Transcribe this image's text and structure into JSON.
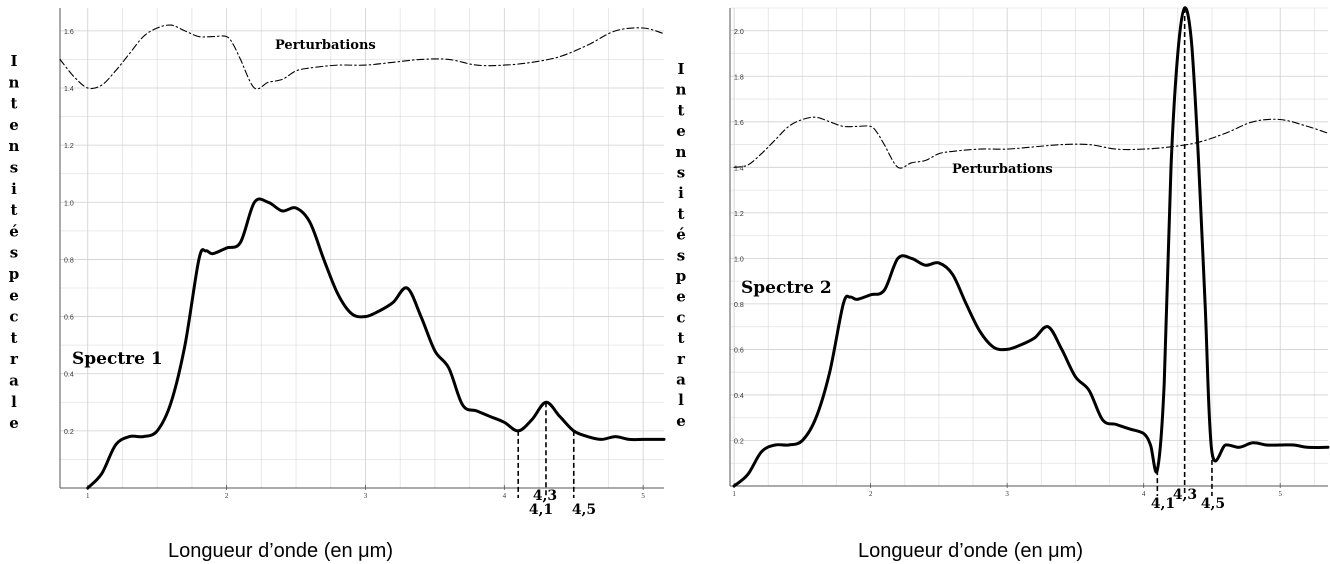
{
  "chart_data": [
    {
      "type": "line",
      "annotation": "Spectre 1",
      "noise_label": "Perturbations",
      "ylabel": "Intensité spectrale",
      "xlabel": "Longueur d’onde (en μm)",
      "xlim": [
        0.8,
        5.15
      ],
      "ylim": [
        0,
        1.68
      ],
      "y_ticks": [
        "0.2",
        "0.4",
        "0.6",
        "0.8",
        "1.0",
        "1.2",
        "1.4",
        "1.6"
      ],
      "x_ticks": [
        "1",
        "2",
        "3",
        "4",
        "5"
      ],
      "markers": [
        "4,1",
        "4,3",
        "4,5"
      ],
      "grid": true,
      "series": [
        {
          "style": "solid",
          "x": [
            1.0,
            1.1,
            1.2,
            1.3,
            1.4,
            1.5,
            1.6,
            1.7,
            1.8,
            1.85,
            1.9,
            2.0,
            2.1,
            2.2,
            2.3,
            2.4,
            2.5,
            2.6,
            2.7,
            2.8,
            2.9,
            3.0,
            3.1,
            3.2,
            3.3,
            3.4,
            3.5,
            3.6,
            3.7,
            3.8,
            3.9,
            4.0,
            4.1,
            4.2,
            4.3,
            4.4,
            4.5,
            4.6,
            4.7,
            4.8,
            4.9,
            5.0,
            5.1,
            5.15
          ],
          "values": [
            0.0,
            0.05,
            0.15,
            0.18,
            0.18,
            0.2,
            0.3,
            0.5,
            0.8,
            0.83,
            0.82,
            0.84,
            0.86,
            1.0,
            1.0,
            0.97,
            0.98,
            0.93,
            0.8,
            0.68,
            0.61,
            0.6,
            0.62,
            0.65,
            0.7,
            0.6,
            0.48,
            0.42,
            0.29,
            0.27,
            0.25,
            0.23,
            0.2,
            0.24,
            0.3,
            0.25,
            0.2,
            0.18,
            0.17,
            0.18,
            0.17,
            0.17,
            0.17,
            0.17
          ]
        },
        {
          "style": "dash-dot",
          "x": [
            0.8,
            0.9,
            1.0,
            1.1,
            1.2,
            1.3,
            1.4,
            1.5,
            1.6,
            1.7,
            1.8,
            1.9,
            2.0,
            2.05,
            2.1,
            2.2,
            2.3,
            2.4,
            2.5,
            2.6,
            2.8,
            3.0,
            3.2,
            3.4,
            3.6,
            3.8,
            4.0,
            4.2,
            4.4,
            4.6,
            4.8,
            5.0,
            5.15
          ],
          "values": [
            1.5,
            1.44,
            1.4,
            1.41,
            1.46,
            1.52,
            1.58,
            1.61,
            1.62,
            1.6,
            1.58,
            1.58,
            1.58,
            1.55,
            1.5,
            1.4,
            1.42,
            1.43,
            1.46,
            1.47,
            1.48,
            1.48,
            1.49,
            1.5,
            1.5,
            1.48,
            1.48,
            1.49,
            1.51,
            1.55,
            1.6,
            1.61,
            1.59
          ]
        }
      ]
    },
    {
      "type": "line",
      "annotation": "Spectre 2",
      "noise_label": "Perturbations",
      "ylabel": "Intensité spectrale",
      "xlabel": "Longueur d’onde (en μm)",
      "xlim": [
        0.97,
        5.35
      ],
      "ylim": [
        0,
        2.1
      ],
      "y_ticks": [
        "0.2",
        "0.4",
        "0.6",
        "0.8",
        "1.0",
        "1.2",
        "1.4",
        "1.6",
        "1.8",
        "2.0"
      ],
      "x_ticks": [
        "1",
        "2",
        "3",
        "4",
        "5"
      ],
      "markers": [
        "4,1",
        "4,3",
        "4,5"
      ],
      "grid": true,
      "series": [
        {
          "style": "solid",
          "x": [
            1.0,
            1.1,
            1.2,
            1.3,
            1.4,
            1.5,
            1.6,
            1.7,
            1.8,
            1.85,
            1.9,
            2.0,
            2.1,
            2.2,
            2.3,
            2.4,
            2.5,
            2.6,
            2.7,
            2.8,
            2.9,
            3.0,
            3.1,
            3.2,
            3.3,
            3.4,
            3.5,
            3.6,
            3.7,
            3.8,
            3.9,
            4.0,
            4.05,
            4.1,
            4.15,
            4.2,
            4.25,
            4.3,
            4.35,
            4.4,
            4.45,
            4.5,
            4.6,
            4.7,
            4.8,
            4.9,
            5.0,
            5.1,
            5.2,
            5.35
          ],
          "values": [
            0.0,
            0.05,
            0.15,
            0.18,
            0.18,
            0.2,
            0.3,
            0.5,
            0.8,
            0.83,
            0.82,
            0.84,
            0.86,
            1.0,
            1.0,
            0.97,
            0.98,
            0.93,
            0.8,
            0.68,
            0.61,
            0.6,
            0.62,
            0.65,
            0.7,
            0.6,
            0.48,
            0.42,
            0.29,
            0.27,
            0.25,
            0.23,
            0.18,
            0.07,
            0.45,
            1.4,
            1.9,
            2.1,
            1.95,
            1.45,
            0.8,
            0.15,
            0.18,
            0.17,
            0.19,
            0.18,
            0.18,
            0.18,
            0.17,
            0.17
          ]
        },
        {
          "style": "dash-dot",
          "x": [
            1.0,
            1.1,
            1.2,
            1.3,
            1.4,
            1.5,
            1.6,
            1.7,
            1.8,
            1.9,
            2.0,
            2.05,
            2.1,
            2.2,
            2.3,
            2.4,
            2.5,
            2.6,
            2.8,
            3.0,
            3.2,
            3.4,
            3.6,
            3.8,
            4.0,
            4.2,
            4.4,
            4.6,
            4.8,
            5.0,
            5.2,
            5.35
          ],
          "values": [
            1.4,
            1.41,
            1.46,
            1.52,
            1.58,
            1.61,
            1.62,
            1.6,
            1.58,
            1.58,
            1.58,
            1.55,
            1.5,
            1.4,
            1.42,
            1.43,
            1.46,
            1.47,
            1.48,
            1.48,
            1.49,
            1.5,
            1.5,
            1.48,
            1.48,
            1.49,
            1.51,
            1.55,
            1.6,
            1.61,
            1.58,
            1.55
          ]
        }
      ]
    }
  ]
}
